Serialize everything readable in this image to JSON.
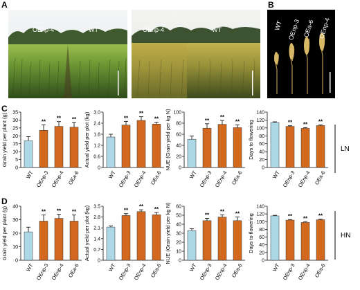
{
  "panels": {
    "A": "A",
    "B": "B",
    "C": "C",
    "D": "D"
  },
  "photos": {
    "photo1_labels": [
      "OEnp-4",
      "WT"
    ],
    "photo2_labels": [
      "OEnp-4",
      "WT"
    ],
    "photo3_labels": [
      "WT",
      "OEnp-3",
      "OEa-6",
      "OEnp-4"
    ]
  },
  "conditions": {
    "row_c": "LN",
    "row_d": "HN"
  },
  "colors": {
    "wt": "#add8e6",
    "oe": "#d2691e"
  },
  "chart_data": [
    {
      "type": "bar",
      "panel": "C",
      "categories": [
        "WT",
        "OEnp-3",
        "OEnp-4",
        "OEa-6"
      ],
      "values": [
        17,
        23.5,
        26,
        25.5
      ],
      "errors": [
        2.5,
        3.5,
        3,
        3
      ],
      "sig": [
        "",
        "**",
        "**",
        "**"
      ],
      "ylabel": "Grain yield per plant (g)",
      "ylim": [
        0,
        35
      ],
      "yticks": [
        0,
        5,
        10,
        15,
        20,
        25,
        30,
        35
      ]
    },
    {
      "type": "bar",
      "panel": "C",
      "categories": [
        "WT",
        "OEnp-3",
        "OEnp-4",
        "OEa-6"
      ],
      "values": [
        1.65,
        2.3,
        2.55,
        2.35
      ],
      "errors": [
        0.15,
        0.2,
        0.2,
        0.1
      ],
      "sig": [
        "",
        "**",
        "**",
        "**"
      ],
      "ylabel": "Actual yield per plot (kg)",
      "ylim": [
        0,
        3
      ],
      "yticks": [
        0,
        0.6,
        1.2,
        1.8,
        2.4,
        3.0
      ],
      "ytick_labels": [
        "0",
        "0.6",
        "1.2",
        "1.8",
        "2.4",
        "3.0"
      ]
    },
    {
      "type": "bar",
      "panel": "C",
      "categories": [
        "WT",
        "OEnp-3",
        "OEnp-4",
        "OEa-6"
      ],
      "values": [
        51,
        71,
        78,
        72
      ],
      "errors": [
        6,
        8,
        7,
        5
      ],
      "sig": [
        "",
        "**",
        "**",
        "**"
      ],
      "ylabel": "NUE (Grain yield per kg N)",
      "ylim": [
        0,
        100
      ],
      "yticks": [
        0,
        20,
        40,
        60,
        80,
        100
      ]
    },
    {
      "type": "bar",
      "panel": "C",
      "categories": [
        "WT",
        "OEnp-3",
        "OEnp-4",
        "OEa-6"
      ],
      "values": [
        114,
        104,
        99,
        106
      ],
      "errors": [
        1.5,
        1.5,
        1.5,
        1.5
      ],
      "sig": [
        "",
        "**",
        "**",
        "**"
      ],
      "ylabel": "Days to flowering",
      "ylim": [
        0,
        140
      ],
      "yticks": [
        0,
        20,
        40,
        60,
        80,
        100,
        120,
        140
      ]
    },
    {
      "type": "bar",
      "panel": "D",
      "categories": [
        "WT",
        "OEnp-3",
        "OEnp-4",
        "OEa-6"
      ],
      "values": [
        21,
        29,
        31,
        29
      ],
      "errors": [
        3.5,
        4.5,
        3,
        4.5
      ],
      "sig": [
        "",
        "**",
        "**",
        "**"
      ],
      "ylabel": "Grain yield per plant (g)",
      "ylim": [
        0,
        40
      ],
      "yticks": [
        0,
        10,
        20,
        30,
        40
      ]
    },
    {
      "type": "bar",
      "panel": "D",
      "categories": [
        "WT",
        "OEnp-3",
        "OEnp-4",
        "OEa-6"
      ],
      "values": [
        2.15,
        2.9,
        3.15,
        2.95
      ],
      "errors": [
        0.08,
        0.12,
        0.12,
        0.15
      ],
      "sig": [
        "",
        "**",
        "**",
        "**"
      ],
      "ylabel": "Actual yield per plot (kg)",
      "ylim": [
        0,
        3.5
      ],
      "yticks": [
        0,
        0.7,
        1.4,
        2.1,
        2.8,
        3.5
      ],
      "ytick_labels": [
        "0",
        "0.7",
        "1.4",
        "2.1",
        "2.8",
        "3.5"
      ]
    },
    {
      "type": "bar",
      "panel": "D",
      "categories": [
        "WT",
        "OEnp-3",
        "OEnp-4",
        "OEa-6"
      ],
      "values": [
        33,
        44,
        48,
        44
      ],
      "errors": [
        2,
        2.5,
        2.5,
        4
      ],
      "sig": [
        "",
        "**",
        "**",
        "**"
      ],
      "ylabel": "NUE (Grain yield per kg N)",
      "ylim": [
        0,
        60
      ],
      "yticks": [
        0,
        10,
        20,
        30,
        40,
        50,
        60
      ]
    },
    {
      "type": "bar",
      "panel": "D",
      "categories": [
        "WT",
        "OEnp-3",
        "OEnp-4",
        "OEa-6"
      ],
      "values": [
        115,
        104,
        98,
        105
      ],
      "errors": [
        1.5,
        1.5,
        1.5,
        1.5
      ],
      "sig": [
        "",
        "**",
        "**",
        "**"
      ],
      "ylabel": "Days to flowering",
      "ylim": [
        0,
        140
      ],
      "yticks": [
        0,
        20,
        40,
        60,
        80,
        100,
        120,
        140
      ]
    }
  ]
}
